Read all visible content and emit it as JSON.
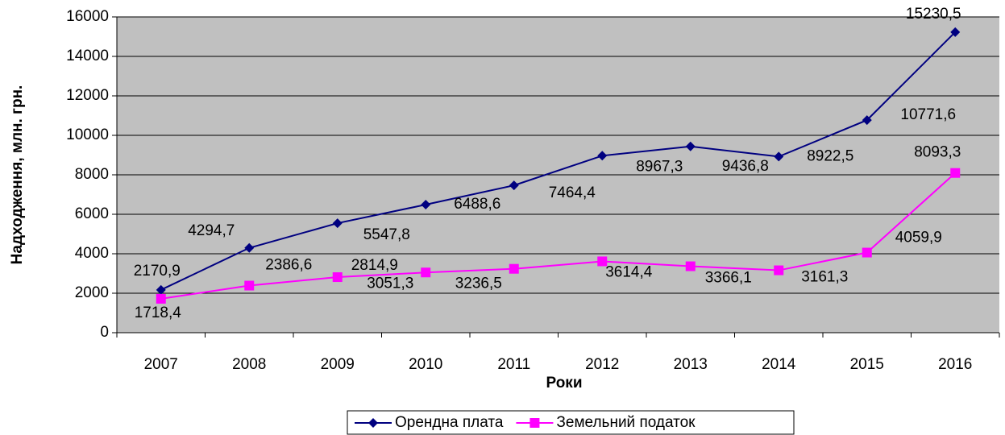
{
  "chart_data": {
    "type": "line",
    "categories": [
      "2007",
      "2008",
      "2009",
      "2010",
      "2011",
      "2012",
      "2013",
      "2014",
      "2015",
      "2016"
    ],
    "series": [
      {
        "name": "Орендна плата",
        "color": "#000080",
        "marker": "diamond",
        "values": [
          2170.9,
          4294.7,
          5547.8,
          6488.6,
          7464.4,
          8967.3,
          9436.8,
          8922.5,
          10771.6,
          15230.5
        ],
        "value_labels": [
          "2170,9",
          "4294,7",
          "5547,8",
          "6488,6",
          "7464,4",
          "8967,3",
          "9436,8",
          "8922,5",
          "10771,6",
          "15230,5"
        ]
      },
      {
        "name": "Земельний податок",
        "color": "#ff00ff",
        "marker": "square",
        "values": [
          1718.4,
          2386.6,
          2814.9,
          3051.3,
          3236.5,
          3614.4,
          3366.1,
          3161.3,
          4059.9,
          8093.3
        ],
        "value_labels": [
          "1718,4",
          "2386,6",
          "2814,9",
          "3051,3",
          "3236,5",
          "3614,4",
          "3366,1",
          "3161,3",
          "4059,9",
          "8093,3"
        ]
      }
    ],
    "xlabel": "Роки",
    "ylabel": "Надходження, млн. грн.",
    "ylim": [
      0,
      16000
    ],
    "yticks": [
      0,
      2000,
      4000,
      6000,
      8000,
      10000,
      12000,
      14000,
      16000
    ],
    "grid": true,
    "legend": "bottom"
  }
}
